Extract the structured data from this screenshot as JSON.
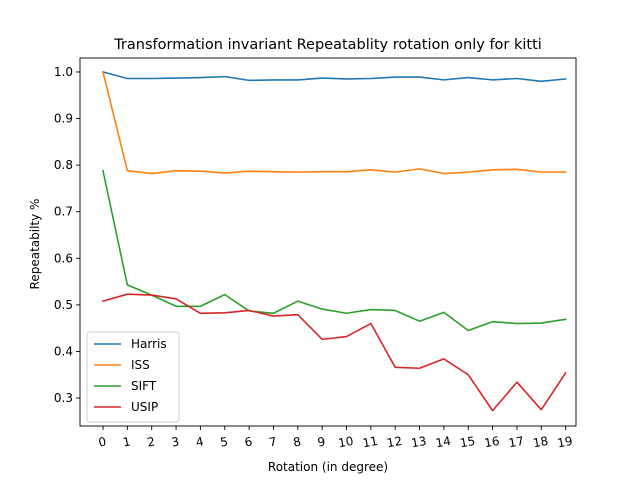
{
  "chart_data": {
    "type": "line",
    "title": "Transformation invariant Repeatablity rotation only for kitti",
    "xlabel": "Rotation (in degree)",
    "ylabel": "Repeatabilty %",
    "categories": [
      "0",
      "1",
      "2",
      "3",
      "4",
      "5",
      "6",
      "7",
      "8",
      "9",
      "10",
      "11",
      "12",
      "13",
      "14",
      "15",
      "16",
      "17",
      "18",
      "19"
    ],
    "yticks": [
      "0.3",
      "0.4",
      "0.5",
      "0.6",
      "0.7",
      "0.8",
      "0.9",
      "1.0"
    ],
    "ylim": [
      0.24,
      1.03
    ],
    "grid": false,
    "legend_position": "lower-left",
    "series": [
      {
        "name": "Harris",
        "color": "#1f77b4",
        "values": [
          1.0,
          0.986,
          0.986,
          0.987,
          0.988,
          0.99,
          0.982,
          0.983,
          0.983,
          0.987,
          0.985,
          0.986,
          0.989,
          0.989,
          0.983,
          0.988,
          0.983,
          0.986,
          0.98,
          0.985
        ]
      },
      {
        "name": "ISS",
        "color": "#ff7f0e",
        "values": [
          1.0,
          0.788,
          0.782,
          0.788,
          0.787,
          0.783,
          0.787,
          0.786,
          0.785,
          0.786,
          0.786,
          0.79,
          0.785,
          0.792,
          0.782,
          0.785,
          0.79,
          0.791,
          0.785,
          0.785
        ]
      },
      {
        "name": "SIFT",
        "color": "#2ca02c",
        "values": [
          0.788,
          0.543,
          0.521,
          0.497,
          0.497,
          0.522,
          0.487,
          0.482,
          0.508,
          0.491,
          0.482,
          0.49,
          0.488,
          0.465,
          0.484,
          0.445,
          0.464,
          0.46,
          0.461,
          0.469
        ]
      },
      {
        "name": "USIP",
        "color": "#d62728",
        "values": [
          0.508,
          0.523,
          0.521,
          0.513,
          0.482,
          0.483,
          0.488,
          0.476,
          0.479,
          0.426,
          0.432,
          0.46,
          0.366,
          0.364,
          0.384,
          0.35,
          0.273,
          0.334,
          0.275,
          0.354
        ]
      }
    ]
  }
}
